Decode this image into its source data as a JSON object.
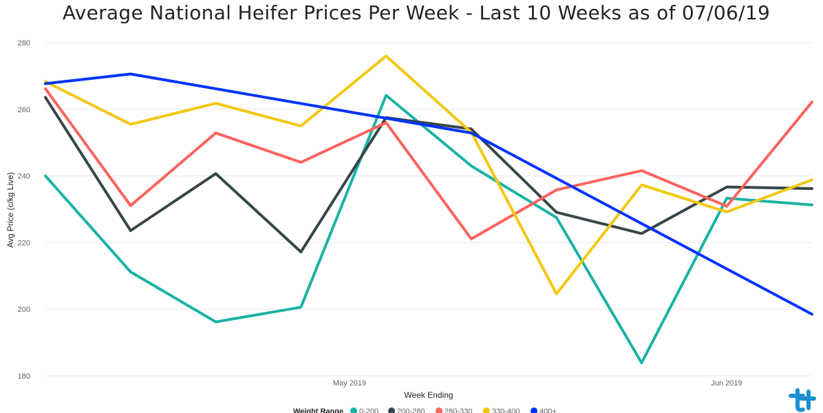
{
  "chart_data": {
    "type": "line",
    "title": "Average National Heifer Prices Per Week - Last 10 Weeks as of 07/06/19",
    "xlabel": "Week Ending",
    "ylabel": "Avg Price (c/kg Live)",
    "ylim": [
      180,
      280
    ],
    "yticks": [
      180,
      200,
      220,
      240,
      260,
      280
    ],
    "xtick_labels": [
      "May 2019",
      "Jun 2019"
    ],
    "grid": true,
    "legend_title": "Weight Range",
    "legend_position": "bottom",
    "series": [
      {
        "name": "0-200",
        "color": "#1AB2A5",
        "values": [
          240.0,
          211.2,
          196.2,
          200.6,
          264.2,
          243.0,
          227.5,
          183.9,
          233.3,
          231.3
        ]
      },
      {
        "name": "200-280",
        "color": "#374649",
        "values": [
          263.6,
          223.6,
          240.7,
          217.2,
          257.5,
          254.1,
          229.1,
          222.7,
          236.7,
          236.2
        ]
      },
      {
        "name": "280-330",
        "color": "#FD625E",
        "values": [
          266.2,
          231.1,
          252.9,
          244.1,
          256.0,
          221.1,
          235.8,
          241.6,
          230.9,
          262.2
        ]
      },
      {
        "name": "330-400",
        "color": "#F2C80F",
        "values": [
          268.3,
          255.5,
          261.8,
          255.0,
          276.0,
          253.1,
          204.6,
          237.3,
          229.2,
          238.8
        ]
      },
      {
        "name": "400+",
        "color": "#0033FF",
        "values": [
          267.7,
          270.6,
          null,
          null,
          null,
          252.9,
          null,
          null,
          null,
          198.5
        ]
      }
    ]
  },
  "logo": {
    "name": "logo-mark"
  }
}
